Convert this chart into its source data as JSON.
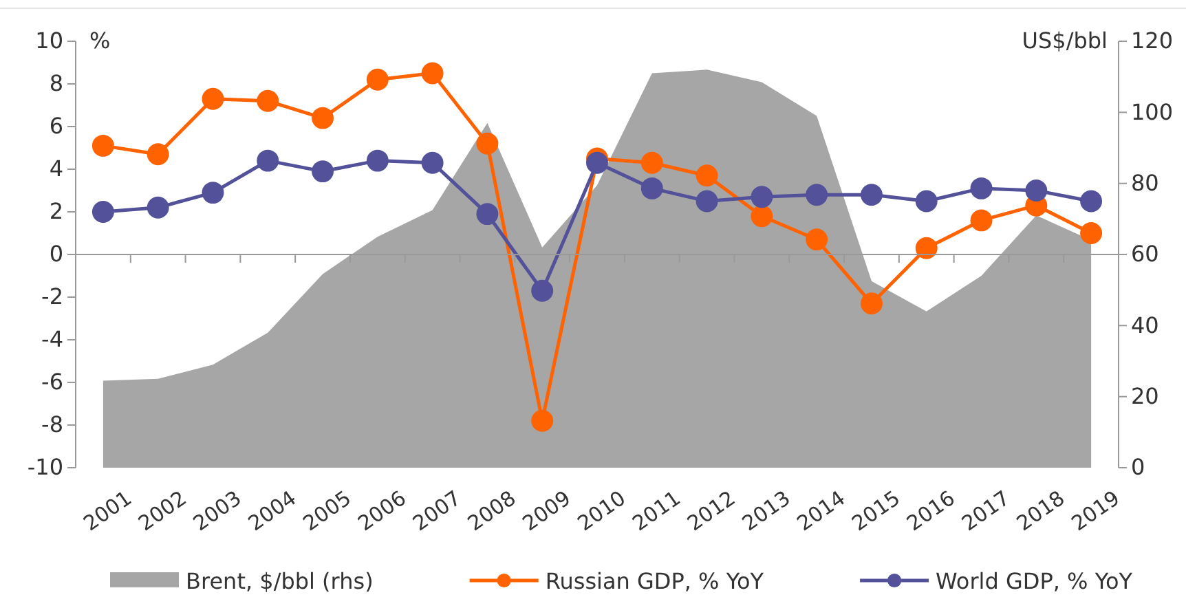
{
  "chart_data": {
    "type": "line",
    "categories": [
      "2001",
      "2002",
      "2003",
      "2004",
      "2005",
      "2006",
      "2007",
      "2008",
      "2009",
      "2010",
      "2011",
      "2012",
      "2013",
      "2014",
      "2015",
      "2016",
      "2017",
      "2018",
      "2019"
    ],
    "ylabel": "%",
    "y2label": "US$/bbl",
    "ylim": [
      -10,
      10
    ],
    "yticks": [
      -10,
      -8,
      -6,
      -4,
      -2,
      0,
      2,
      4,
      6,
      8,
      10
    ],
    "y2lim": [
      0,
      120
    ],
    "y2ticks": [
      0,
      20,
      40,
      60,
      80,
      100,
      120
    ],
    "legend": "bottom",
    "line_style": "solid",
    "series": [
      {
        "name": "Brent,  $/bbl (rhs)",
        "type": "area",
        "axis": "y2",
        "color": "#a6a6a6",
        "values": [
          24.5,
          25,
          29,
          38,
          54.5,
          65,
          72.5,
          97,
          62,
          79.5,
          111,
          112,
          108.5,
          99,
          52.5,
          44,
          54,
          71,
          64
        ]
      },
      {
        "name": "Russian GDP, % YoY",
        "marker": "circle",
        "color": "#ff6200",
        "values": [
          5.1,
          4.7,
          7.3,
          7.2,
          6.4,
          8.2,
          8.5,
          5.2,
          -7.8,
          4.5,
          4.3,
          3.7,
          1.8,
          0.7,
          -2.3,
          0.3,
          1.6,
          2.3,
          1.0
        ]
      },
      {
        "name": "World GDP, % YoY",
        "marker": "circle",
        "color": "#525199",
        "values": [
          2.0,
          2.2,
          2.9,
          4.4,
          3.9,
          4.4,
          4.3,
          1.9,
          -1.7,
          4.3,
          3.1,
          2.5,
          2.7,
          2.8,
          2.8,
          2.5,
          3.1,
          3.0,
          2.5
        ]
      }
    ]
  }
}
